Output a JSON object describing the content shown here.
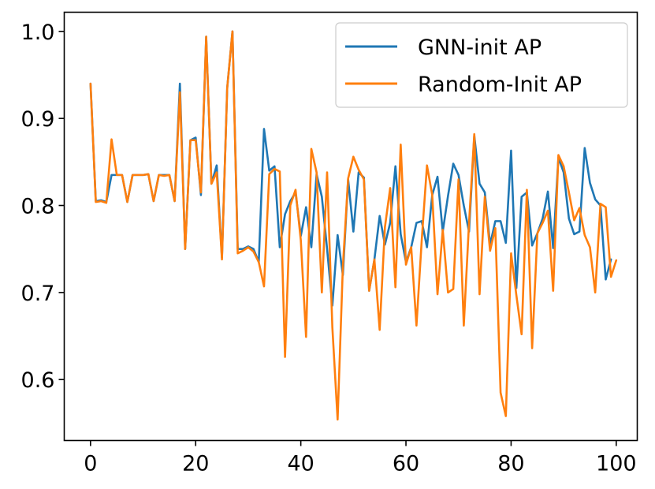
{
  "chart_data": {
    "type": "line",
    "title": "",
    "xlabel": "",
    "ylabel": "",
    "xlim": [
      -5,
      104
    ],
    "ylim": [
      0.53,
      1.022
    ],
    "x_ticks": [
      0,
      20,
      40,
      60,
      80,
      100
    ],
    "x_tick_labels": [
      "0",
      "20",
      "40",
      "60",
      "80",
      "100"
    ],
    "y_ticks": [
      0.6,
      0.7,
      0.8,
      0.9,
      1.0
    ],
    "y_tick_labels": [
      "0.6",
      "0.7",
      "0.8",
      "0.9",
      "1.0"
    ],
    "grid": false,
    "legend_position": "top-right",
    "series": [
      {
        "name": "GNN-init AP",
        "color": "#1f77b4",
        "values": [
          0.94,
          0.805,
          0.806,
          0.804,
          0.835,
          0.835,
          0.835,
          0.804,
          0.835,
          0.835,
          0.835,
          0.836,
          0.805,
          0.835,
          0.835,
          0.835,
          0.805,
          0.94,
          0.75,
          0.875,
          0.878,
          0.812,
          0.994,
          0.825,
          0.846,
          0.74,
          0.935,
          1.0,
          0.75,
          0.75,
          0.753,
          0.75,
          0.735,
          0.888,
          0.84,
          0.845,
          0.752,
          0.79,
          0.805,
          0.815,
          0.765,
          0.798,
          0.752,
          0.836,
          0.81,
          0.75,
          0.685,
          0.766,
          0.72,
          0.83,
          0.77,
          0.838,
          0.832,
          0.702,
          0.738,
          0.788,
          0.755,
          0.78,
          0.845,
          0.767,
          0.735,
          0.752,
          0.78,
          0.782,
          0.752,
          0.812,
          0.833,
          0.77,
          0.811,
          0.848,
          0.835,
          0.8,
          0.77,
          0.88,
          0.825,
          0.815,
          0.755,
          0.782,
          0.782,
          0.757,
          0.863,
          0.705,
          0.81,
          0.815,
          0.754,
          0.768,
          0.785,
          0.816,
          0.751,
          0.855,
          0.838,
          0.785,
          0.767,
          0.77,
          0.866,
          0.826,
          0.807,
          0.8,
          0.715,
          0.738
        ]
      },
      {
        "name": "Random-Init AP",
        "color": "#ff7f0e",
        "values": [
          0.94,
          0.804,
          0.805,
          0.803,
          0.876,
          0.835,
          0.835,
          0.804,
          0.835,
          0.835,
          0.835,
          0.836,
          0.805,
          0.835,
          0.834,
          0.835,
          0.805,
          0.93,
          0.75,
          0.875,
          0.875,
          0.815,
          0.994,
          0.825,
          0.838,
          0.738,
          0.935,
          1.0,
          0.745,
          0.748,
          0.752,
          0.747,
          0.735,
          0.707,
          0.836,
          0.842,
          0.839,
          0.626,
          0.8,
          0.818,
          0.76,
          0.649,
          0.865,
          0.838,
          0.7,
          0.838,
          0.66,
          0.554,
          0.73,
          0.831,
          0.856,
          0.841,
          0.83,
          0.702,
          0.738,
          0.657,
          0.775,
          0.82,
          0.706,
          0.87,
          0.732,
          0.752,
          0.662,
          0.76,
          0.846,
          0.812,
          0.698,
          0.772,
          0.7,
          0.704,
          0.83,
          0.662,
          0.78,
          0.882,
          0.698,
          0.81,
          0.748,
          0.774,
          0.585,
          0.558,
          0.745,
          0.697,
          0.652,
          0.818,
          0.636,
          0.768,
          0.78,
          0.794,
          0.702,
          0.858,
          0.845,
          0.815,
          0.783,
          0.797,
          0.766,
          0.752,
          0.7,
          0.802,
          0.798,
          0.718,
          0.737
        ]
      }
    ]
  }
}
